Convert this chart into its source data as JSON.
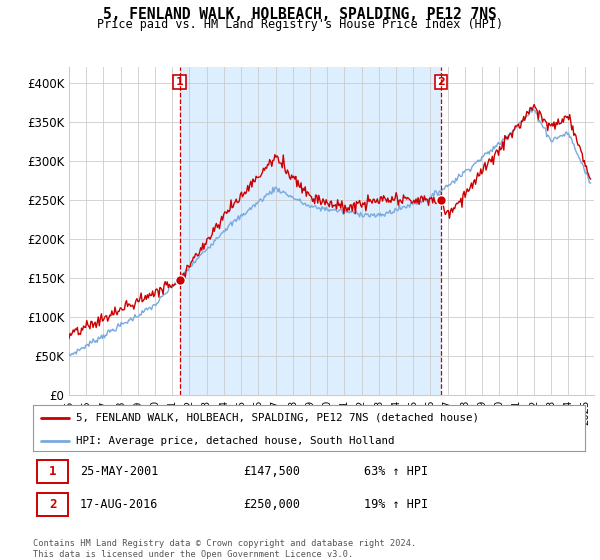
{
  "title": "5, FENLAND WALK, HOLBEACH, SPALDING, PE12 7NS",
  "subtitle": "Price paid vs. HM Land Registry's House Price Index (HPI)",
  "xlim_start": 1995.0,
  "xlim_end": 2025.5,
  "ylim_min": 0,
  "ylim_max": 420000,
  "yticks": [
    0,
    50000,
    100000,
    150000,
    200000,
    250000,
    300000,
    350000,
    400000
  ],
  "ytick_labels": [
    "£0",
    "£50K",
    "£100K",
    "£150K",
    "£200K",
    "£250K",
    "£300K",
    "£350K",
    "£400K"
  ],
  "xticks": [
    1995,
    1996,
    1997,
    1998,
    1999,
    2000,
    2001,
    2002,
    2003,
    2004,
    2005,
    2006,
    2007,
    2008,
    2009,
    2010,
    2011,
    2012,
    2013,
    2014,
    2015,
    2016,
    2017,
    2018,
    2019,
    2020,
    2021,
    2022,
    2023,
    2024,
    2025
  ],
  "grid_color": "#cccccc",
  "red_color": "#cc0000",
  "blue_color": "#7aaadd",
  "shade_color": "#ddeeff",
  "marker1_year": 2001.42,
  "marker1_value": 147500,
  "marker2_year": 2016.63,
  "marker2_value": 250000,
  "marker1_label": "1",
  "marker2_label": "2",
  "legend_line1": "5, FENLAND WALK, HOLBEACH, SPALDING, PE12 7NS (detached house)",
  "legend_line2": "HPI: Average price, detached house, South Holland",
  "table_row1_num": "1",
  "table_row1_date": "25-MAY-2001",
  "table_row1_price": "£147,500",
  "table_row1_hpi": "63% ↑ HPI",
  "table_row2_num": "2",
  "table_row2_date": "17-AUG-2016",
  "table_row2_price": "£250,000",
  "table_row2_hpi": "19% ↑ HPI",
  "footnote": "Contains HM Land Registry data © Crown copyright and database right 2024.\nThis data is licensed under the Open Government Licence v3.0.",
  "bg_color": "#ffffff",
  "title_fontsize": 10.5,
  "subtitle_fontsize": 8.5
}
